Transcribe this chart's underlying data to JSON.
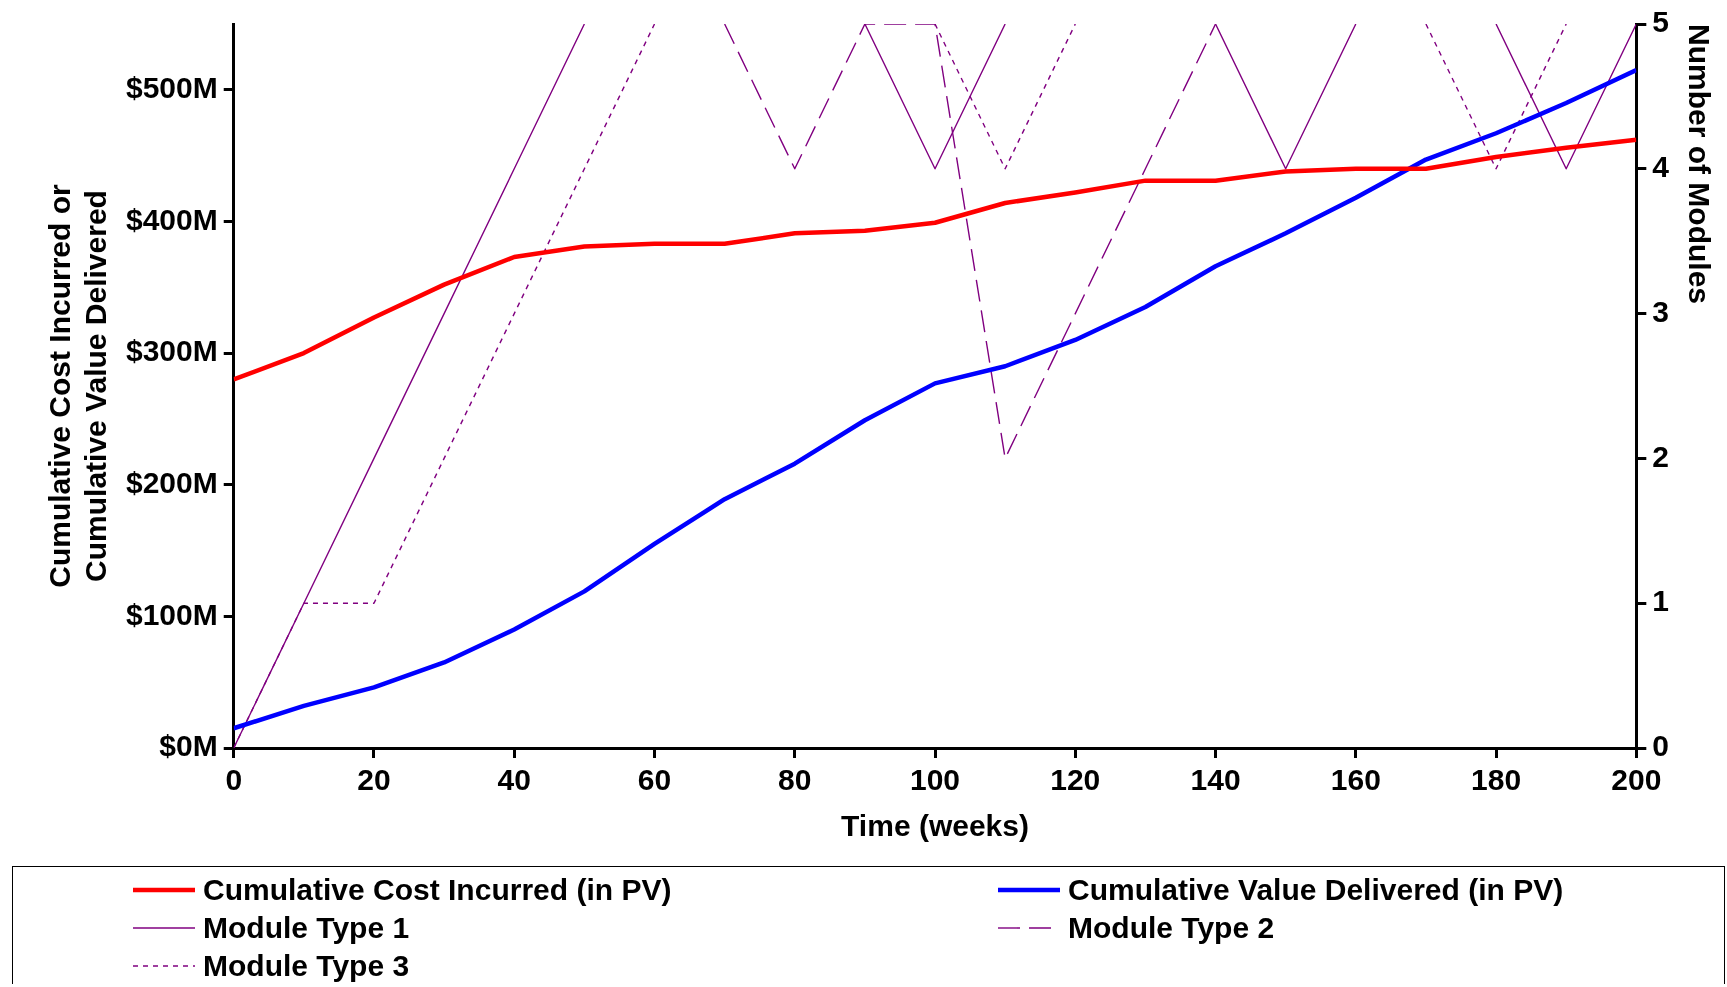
{
  "chart_data": {
    "type": "line",
    "xlabel": "Time (weeks)",
    "ylabel": "Cumulative Cost Incurred or\nCumulative Value Delivered",
    "y2label": "Number of Modules",
    "x": [
      0,
      10,
      20,
      30,
      40,
      50,
      60,
      70,
      80,
      90,
      100,
      110,
      120,
      130,
      140,
      150,
      160,
      170,
      180,
      190,
      200
    ],
    "xlim": [
      0,
      200
    ],
    "xticks": [
      0,
      20,
      40,
      60,
      80,
      100,
      120,
      140,
      160,
      180,
      200
    ],
    "ylim": [
      0,
      550
    ],
    "yticks": [
      {
        "value": 0,
        "label": "$0M"
      },
      {
        "value": 100,
        "label": "$100M"
      },
      {
        "value": 200,
        "label": "$200M"
      },
      {
        "value": 300,
        "label": "$300M"
      },
      {
        "value": 400,
        "label": "$400M"
      },
      {
        "value": 500,
        "label": "$500M"
      }
    ],
    "y2lim": [
      0,
      5
    ],
    "y2ticks": [
      0,
      1,
      2,
      3,
      4,
      5
    ],
    "grid": false,
    "legend": "bottom",
    "marker": "none",
    "series": [
      {
        "name": "Cumulative Cost Incurred (in PV)",
        "color": "#ff0000",
        "line_style": "solid",
        "values": [
          280,
          300,
          327,
          352,
          373,
          381,
          383,
          383,
          391,
          393,
          399,
          414,
          422,
          431,
          431,
          438,
          440,
          440,
          449,
          456,
          462
        ]
      },
      {
        "name": "Cumulative Value Delivered (in PV)",
        "color": "#0000ff",
        "line_style": "solid",
        "values": [
          15,
          32,
          46,
          65,
          90,
          119,
          155,
          189,
          216,
          249,
          277,
          290,
          310,
          335,
          366,
          391,
          418,
          447,
          467,
          490,
          515
        ]
      },
      {
        "name": "Module Type 1",
        "color": "#800080",
        "axis": "y2",
        "line_style": "solid",
        "values": [
          0,
          1,
          2,
          3,
          4,
          5,
          null,
          null,
          null,
          5,
          4,
          5,
          null,
          null,
          5,
          4,
          5,
          null,
          5,
          4,
          5
        ]
      },
      {
        "name": "Module Type 2",
        "color": "#800080",
        "axis": "y2",
        "line_style": "dashed",
        "values": [
          null,
          null,
          null,
          null,
          null,
          null,
          null,
          5,
          4,
          5,
          5,
          2,
          3,
          4,
          5,
          null,
          null,
          null,
          null,
          null,
          null
        ]
      },
      {
        "name": "Module Type 3",
        "color": "#800080",
        "axis": "y2",
        "line_style": "dotted",
        "values": [
          0,
          1,
          1,
          2,
          3,
          4,
          5,
          null,
          null,
          null,
          5,
          4,
          5,
          null,
          null,
          null,
          null,
          5,
          4,
          5,
          null
        ]
      }
    ]
  }
}
